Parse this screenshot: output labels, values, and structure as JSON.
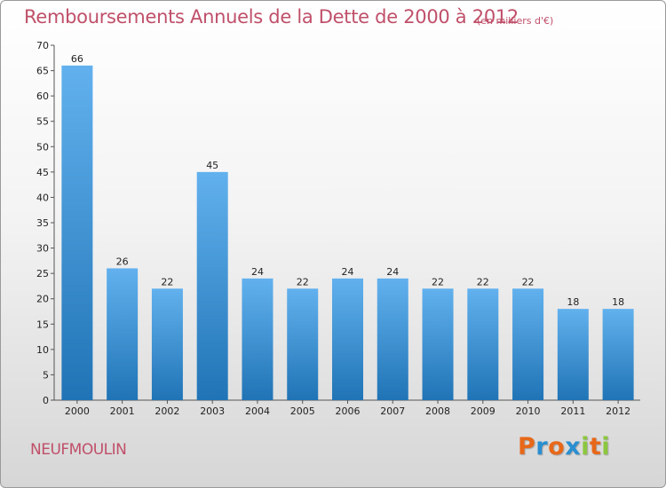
{
  "header": {
    "title": "Remboursements Annuels de la Dette de 2000 à 2012",
    "subtitle": "(en milliers d'€)"
  },
  "footer": {
    "commune": "NEUFMOULIN",
    "logo_letters": [
      {
        "char": "P",
        "color": "#e8681a"
      },
      {
        "char": "r",
        "color": "#2a8fd0"
      },
      {
        "char": "o",
        "color": "#e8681a"
      },
      {
        "char": "x",
        "color": "#2a8fd0"
      },
      {
        "char": "i",
        "color": "#8dc63f"
      },
      {
        "char": "t",
        "color": "#e8681a"
      },
      {
        "char": "i",
        "color": "#8dc63f"
      }
    ]
  },
  "colors": {
    "bar_light": "#62b1ee",
    "bar_dark": "#2074b5",
    "title": "#c0506a"
  },
  "chart_data": {
    "type": "bar",
    "title": "Remboursements Annuels de la Dette de 2000 à 2012",
    "subtitle": "(en milliers d'€)",
    "categories": [
      "2000",
      "2001",
      "2002",
      "2003",
      "2004",
      "2005",
      "2006",
      "2007",
      "2008",
      "2009",
      "2010",
      "2011",
      "2012"
    ],
    "values": [
      66,
      26,
      22,
      45,
      24,
      22,
      24,
      24,
      22,
      22,
      22,
      18,
      18
    ],
    "ylim": [
      0,
      70
    ],
    "yticks": [
      0,
      5,
      10,
      15,
      20,
      25,
      30,
      35,
      40,
      45,
      50,
      55,
      60,
      65,
      70
    ],
    "xlabel": "",
    "ylabel": "",
    "grid": false,
    "data_labels": true
  }
}
